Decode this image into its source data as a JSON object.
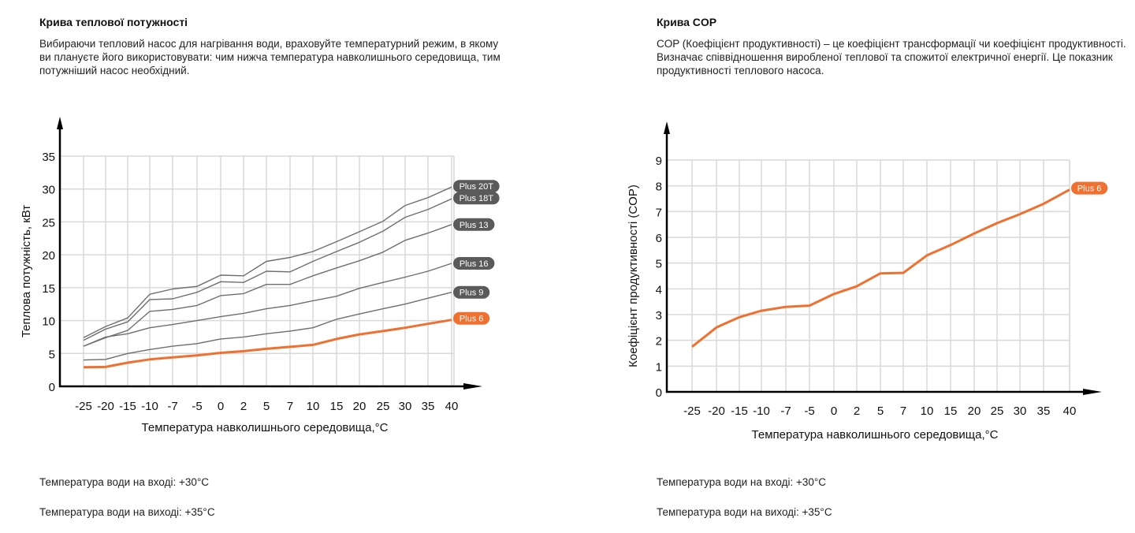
{
  "left_panel": {
    "title": "Крива теплової потужності",
    "description": "Вибираючи тепловий насос для нагрівання води, враховуйте температурний режим, в якому ви плануєте його використовувати: чим нижча температура навколишнього середовища, тим потужніший насос необхідний.",
    "note_inlet": "Температура води на вході: +30°C",
    "note_outlet": "Температура води на виході: +35°C"
  },
  "right_panel": {
    "title": "Крива COP",
    "description": "COP (Коефіцієнт продуктивності) – це коефіцієнт трансформації чи коефіцієнт продуктивності. Визначає співвідношення виробленої теплової та спожитої електричної енергії. Це показник продуктивності теплового насоса.",
    "note_inlet": "Температура води на вході: +30°C",
    "note_outlet": "Температура води на виході: +35°C"
  },
  "colors": {
    "accent": "#f07030",
    "series_gray": "#6e6e6e",
    "badge_gray": "#5a5a5a",
    "grid": "#d9d9d9",
    "axis": "#000000"
  },
  "chart_data": [
    {
      "type": "line",
      "title": "Крива теплової потужності",
      "xlabel": "Температура навколишнього середовища,°C",
      "ylabel": "Теплова потужність, кВт",
      "categories": [
        "-25",
        "-20",
        "-15",
        "-10",
        "-7",
        "-5",
        "0",
        "2",
        "5",
        "7",
        "10",
        "15",
        "20",
        "25",
        "30",
        "35",
        "40"
      ],
      "yticks": [
        "0",
        "5",
        "10",
        "15",
        "20",
        "25",
        "30",
        "35"
      ],
      "ylim": [
        0,
        35
      ],
      "grid": true,
      "legend": "end-of-line labels, right",
      "series": [
        {
          "name": "Plus 20T",
          "color": "#6e6e6e",
          "badge": "#5a5a5a",
          "values": [
            7.4,
            9.1,
            10.4,
            14.0,
            14.8,
            15.2,
            16.9,
            16.8,
            19.0,
            19.6,
            20.5,
            22.0,
            23.5,
            25.1,
            27.5,
            28.7,
            30.3
          ]
        },
        {
          "name": "Plus 18T",
          "color": "#6e6e6e",
          "badge": "#5a5a5a",
          "values": [
            7.0,
            8.7,
            9.8,
            13.2,
            13.3,
            14.3,
            15.9,
            15.8,
            17.5,
            17.4,
            19.0,
            20.5,
            21.9,
            23.6,
            25.7,
            26.9,
            28.5
          ]
        },
        {
          "name": "Plus 13",
          "color": "#6e6e6e",
          "badge": "#5a5a5a",
          "values": [
            6.1,
            7.4,
            8.5,
            11.4,
            11.7,
            12.3,
            13.8,
            14.1,
            15.5,
            15.5,
            16.8,
            18.0,
            19.1,
            20.4,
            22.2,
            23.3,
            24.6
          ]
        },
        {
          "name": "Plus 16",
          "color": "#6e6e6e",
          "badge": "#5a5a5a",
          "values": [
            6.1,
            7.5,
            8.0,
            8.9,
            9.4,
            10.0,
            10.6,
            11.1,
            11.8,
            12.3,
            13.0,
            13.7,
            14.9,
            15.8,
            16.6,
            17.5,
            18.7
          ]
        },
        {
          "name": "Plus 9",
          "color": "#6e6e6e",
          "badge": "#5a5a5a",
          "values": [
            4.0,
            4.1,
            5.0,
            5.6,
            6.1,
            6.5,
            7.2,
            7.5,
            8.0,
            8.4,
            8.9,
            10.2,
            11.0,
            11.8,
            12.5,
            13.4,
            14.3
          ]
        },
        {
          "name": "Plus 6",
          "color": "#f07030",
          "badge": "#f07030",
          "values": [
            2.9,
            2.95,
            3.6,
            4.1,
            4.4,
            4.7,
            5.1,
            5.35,
            5.7,
            6.0,
            6.3,
            7.2,
            7.9,
            8.4,
            8.9,
            9.5,
            10.1
          ]
        }
      ]
    },
    {
      "type": "line",
      "title": "Крива COP",
      "xlabel": "Температура навколишнього середовища,°C",
      "ylabel": "Коефіцієнт продуктивності (COP)",
      "categories": [
        "-25",
        "-20",
        "-15",
        "-10",
        "-7",
        "-5",
        "0",
        "2",
        "5",
        "7",
        "10",
        "15",
        "20",
        "25",
        "30",
        "35",
        "40"
      ],
      "yticks": [
        "0",
        "1",
        "2",
        "3",
        "4",
        "5",
        "6",
        "7",
        "8",
        "9"
      ],
      "ylim": [
        0,
        9
      ],
      "grid": true,
      "legend": "end-of-line label, right",
      "series": [
        {
          "name": "Plus 6",
          "color": "#f07030",
          "badge": "#f07030",
          "values": [
            1.75,
            2.5,
            2.9,
            3.15,
            3.3,
            3.35,
            3.8,
            4.1,
            4.6,
            4.62,
            5.3,
            5.7,
            6.15,
            6.55,
            6.9,
            7.3,
            7.85
          ]
        }
      ]
    }
  ]
}
